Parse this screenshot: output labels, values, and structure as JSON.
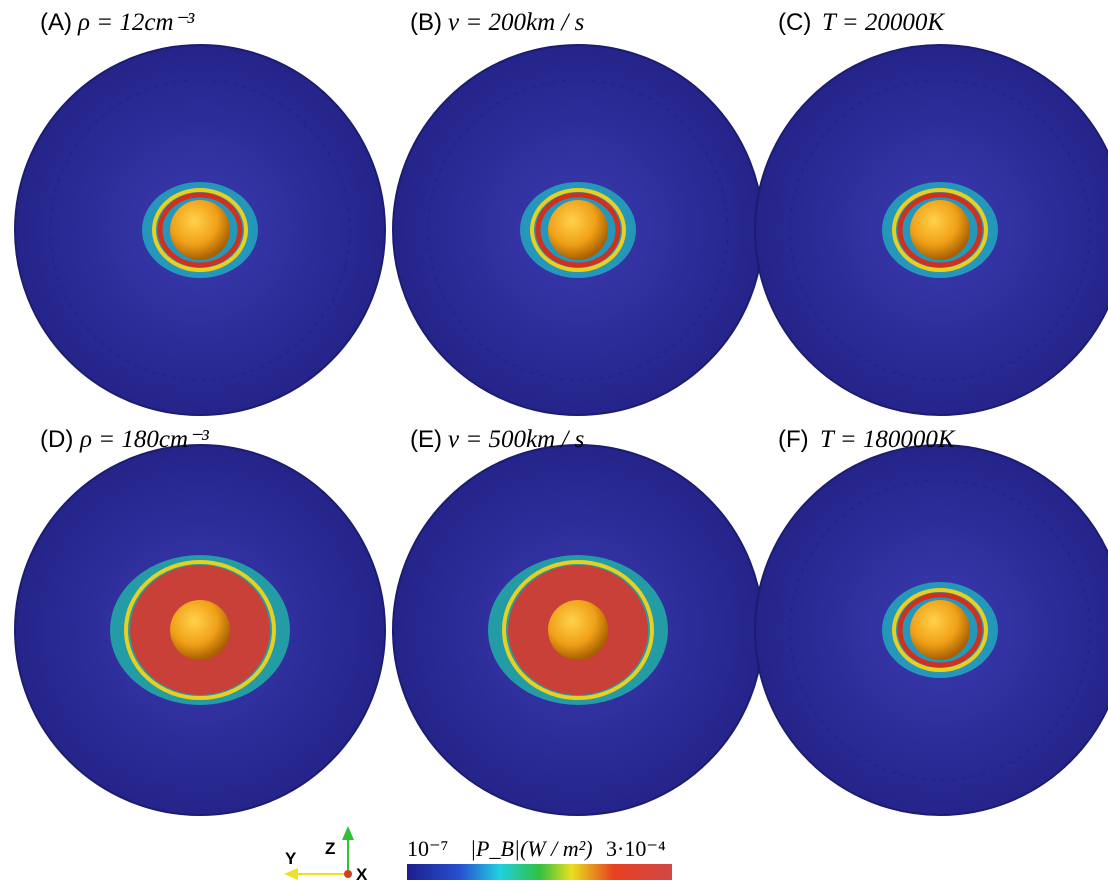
{
  "panels": [
    {
      "label": "(A)",
      "formula": "ρ = 12cm⁻³"
    },
    {
      "label": "(B)",
      "formula": "v = 200km / s"
    },
    {
      "label": "(C)",
      "formula": "T = 20000K"
    },
    {
      "label": "(D)",
      "formula": "ρ = 180cm⁻³"
    },
    {
      "label": "(E)",
      "formula": "v = 500km / s"
    },
    {
      "label": "(F)",
      "formula": "T = 180000K"
    }
  ],
  "colorbar": {
    "min_label": "10⁻⁷",
    "title": "|P_B|(W / m²)",
    "max_label": "3·10⁻⁴"
  },
  "axes": {
    "z": "Z",
    "y": "Y",
    "x": "X"
  }
}
